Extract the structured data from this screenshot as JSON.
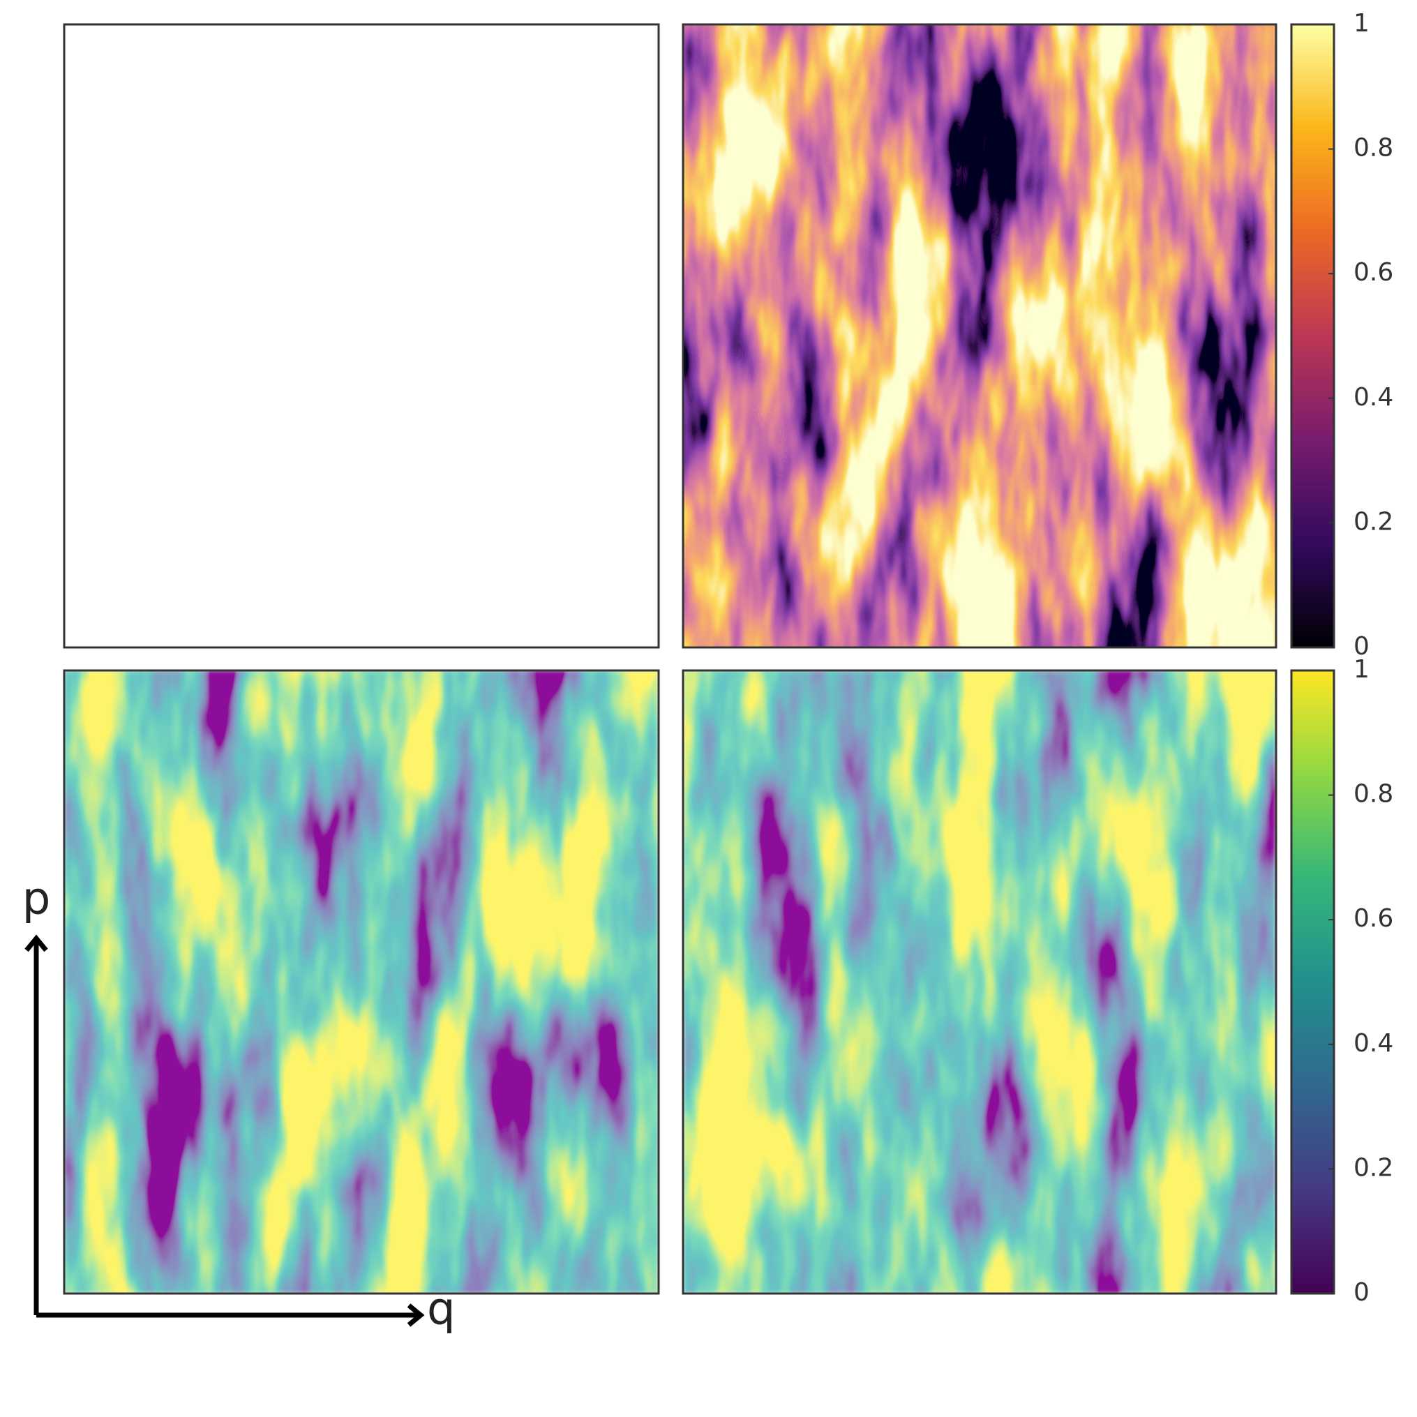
{
  "chart_data": [
    {
      "type": "colorbar",
      "colormap": "inferno",
      "colors": [
        "#000004",
        "#320a5e",
        "#781c6d",
        "#bc3754",
        "#ed6925",
        "#fbb61a",
        "#fcffa4"
      ],
      "ylim": [
        0,
        1
      ],
      "yticks": [
        0,
        0.2,
        0.4,
        0.6,
        0.8,
        1
      ]
    },
    {
      "type": "colorbar",
      "colormap": "viridis",
      "colors": [
        "#440154",
        "#443a83",
        "#31688e",
        "#21908d",
        "#35b779",
        "#8fd744",
        "#fde725"
      ],
      "ylim": [
        0,
        1
      ],
      "yticks": [
        0,
        0.2,
        0.4,
        0.6,
        0.8,
        1
      ]
    }
  ],
  "scatter_colors": [
    "#e8131b",
    "#000000"
  ],
  "axes": {
    "x_label": "q",
    "y_label": "p"
  }
}
